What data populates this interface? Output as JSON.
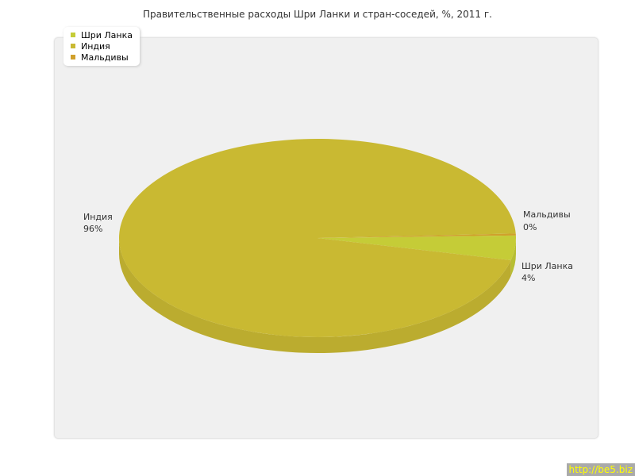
{
  "chart_data": {
    "type": "pie",
    "title": "Правительственные расходы Шри Ланки и стран-соседей, %, 2011 г.",
    "three_d": true,
    "legend_placement": "top-left",
    "slices": [
      {
        "name": "Шри Ланка",
        "value": 4,
        "label": "4%",
        "color": "#c5cc37"
      },
      {
        "name": "Индия",
        "value": 96,
        "label": "96%",
        "color": "#c9b932"
      },
      {
        "name": "Мальдивы",
        "value": 0,
        "label": "0%",
        "color": "#d0a02c"
      }
    ]
  },
  "watermark": "http://be5.biz"
}
